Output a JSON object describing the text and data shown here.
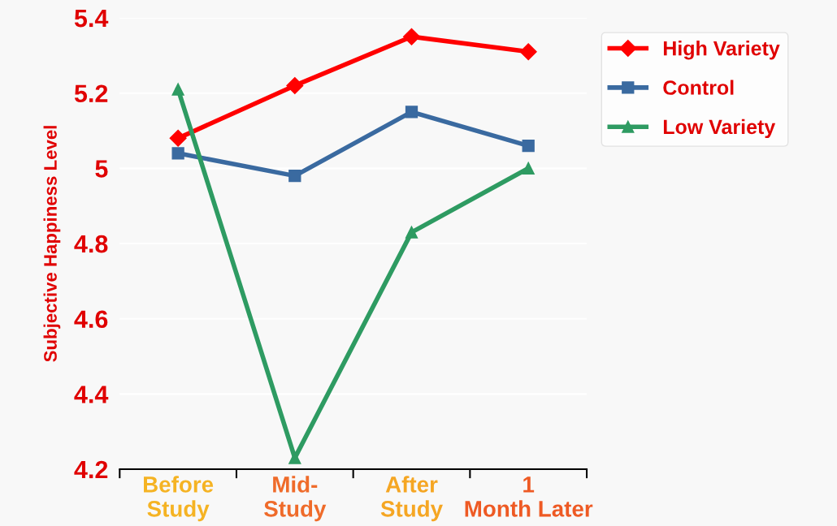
{
  "chart_data": {
    "type": "line",
    "ylabel": "Subjective Happiness Level",
    "categories": [
      "Before Study",
      "Mid-Study",
      "After Study",
      "1 Month Later"
    ],
    "series": [
      {
        "name": "High Variety",
        "color": "#ff0000",
        "values": [
          5.08,
          5.22,
          5.35,
          5.31
        ],
        "marker": "diamond"
      },
      {
        "name": "Control",
        "color": "#3a6aa0",
        "values": [
          5.04,
          4.98,
          5.15,
          5.06
        ],
        "marker": "square"
      },
      {
        "name": "Low Variety",
        "color": "#2e9b62",
        "values": [
          5.21,
          4.23,
          4.83,
          5.0
        ],
        "marker": "triangle"
      }
    ],
    "ylim": [
      4.2,
      5.4
    ],
    "yticks": [
      4.2,
      4.4,
      4.6,
      4.8,
      5,
      5.2,
      5.4
    ],
    "grid": "y",
    "legend": "top right",
    "line_style": "solid"
  }
}
